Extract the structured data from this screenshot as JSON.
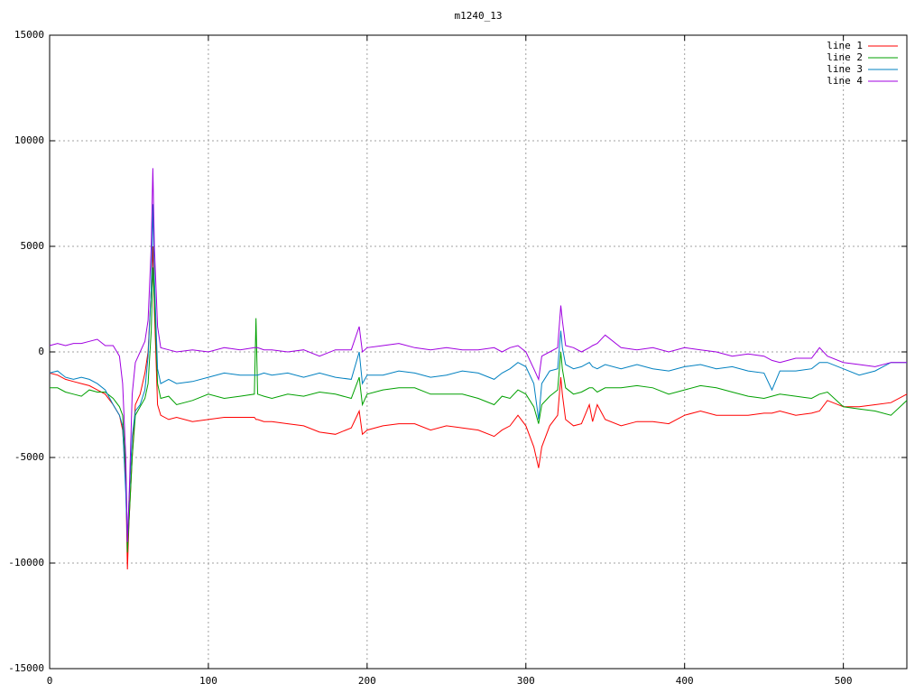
{
  "chart_data": {
    "type": "line",
    "title": "m1240_13",
    "x": [
      0,
      5,
      10,
      15,
      20,
      25,
      30,
      35,
      40,
      44,
      46,
      48,
      49,
      50,
      52,
      54,
      57,
      60,
      62,
      64,
      65,
      66,
      68,
      70,
      75,
      80,
      90,
      100,
      110,
      120,
      129,
      130,
      131,
      135,
      140,
      150,
      160,
      170,
      180,
      190,
      195,
      197,
      200,
      210,
      220,
      230,
      240,
      250,
      260,
      270,
      280,
      285,
      290,
      295,
      300,
      305,
      308,
      310,
      315,
      320,
      322,
      323,
      325,
      330,
      335,
      340,
      342,
      345,
      350,
      360,
      370,
      380,
      390,
      400,
      410,
      420,
      430,
      440,
      450,
      455,
      460,
      470,
      480,
      485,
      490,
      500,
      510,
      520,
      530,
      540
    ],
    "series": [
      {
        "name": "line 1",
        "color": "#ff0000",
        "values": [
          -1000,
          -1100,
          -1300,
          -1400,
          -1500,
          -1600,
          -1800,
          -2000,
          -2500,
          -3000,
          -3700,
          -6000,
          -10300,
          -8000,
          -5000,
          -2500,
          -2000,
          -1000,
          0,
          3000,
          5000,
          2000,
          -2500,
          -3000,
          -3200,
          -3100,
          -3300,
          -3200,
          -3100,
          -3100,
          -3100,
          -3200,
          -3200,
          -3300,
          -3300,
          -3400,
          -3500,
          -3800,
          -3900,
          -3600,
          -2800,
          -3900,
          -3700,
          -3500,
          -3400,
          -3400,
          -3700,
          -3500,
          -3600,
          -3700,
          -4000,
          -3700,
          -3500,
          -3000,
          -3500,
          -4500,
          -5500,
          -4500,
          -3500,
          -3000,
          -1200,
          -2000,
          -3200,
          -3500,
          -3400,
          -2500,
          -3300,
          -2500,
          -3200,
          -3500,
          -3300,
          -3300,
          -3400,
          -3000,
          -2800,
          -3000,
          -3000,
          -3000,
          -2900,
          -2900,
          -2800,
          -3000,
          -2900,
          -2800,
          -2300,
          -2600,
          -2600,
          -2500,
          -2400,
          -2000
        ]
      },
      {
        "name": "line 2",
        "color": "#00a000",
        "values": [
          -1700,
          -1700,
          -1900,
          -2000,
          -2100,
          -1800,
          -1900,
          -1900,
          -2200,
          -2600,
          -3000,
          -5500,
          -9500,
          -8000,
          -5000,
          -3000,
          -2600,
          -2200,
          -1500,
          1000,
          4000,
          2500,
          -1500,
          -2200,
          -2100,
          -2500,
          -2300,
          -2000,
          -2200,
          -2100,
          -2000,
          1600,
          -2000,
          -2100,
          -2200,
          -2000,
          -2100,
          -1900,
          -2000,
          -2200,
          -1200,
          -2500,
          -2000,
          -1800,
          -1700,
          -1700,
          -2000,
          -2000,
          -2000,
          -2200,
          -2500,
          -2100,
          -2200,
          -1800,
          -2000,
          -2600,
          -3400,
          -2500,
          -2100,
          -1800,
          0,
          -800,
          -1700,
          -2000,
          -1900,
          -1700,
          -1700,
          -1900,
          -1700,
          -1700,
          -1600,
          -1700,
          -2000,
          -1800,
          -1600,
          -1700,
          -1900,
          -2100,
          -2200,
          -2100,
          -2000,
          -2100,
          -2200,
          -2000,
          -1900,
          -2600,
          -2700,
          -2800,
          -3000,
          -2300
        ]
      },
      {
        "name": "line 3",
        "color": "#0080c0",
        "values": [
          -1000,
          -900,
          -1200,
          -1300,
          -1200,
          -1300,
          -1500,
          -1800,
          -2500,
          -3000,
          -3500,
          -6700,
          -9000,
          -7000,
          -4000,
          -2800,
          -2500,
          -1800,
          -200,
          3000,
          7000,
          3500,
          -800,
          -1500,
          -1300,
          -1500,
          -1400,
          -1200,
          -1000,
          -1100,
          -1100,
          -1100,
          -1100,
          -1000,
          -1100,
          -1000,
          -1200,
          -1000,
          -1200,
          -1300,
          0,
          -1500,
          -1100,
          -1100,
          -900,
          -1000,
          -1200,
          -1100,
          -900,
          -1000,
          -1300,
          -1000,
          -800,
          -500,
          -700,
          -1500,
          -3200,
          -1500,
          -900,
          -800,
          1000,
          200,
          -600,
          -800,
          -700,
          -500,
          -700,
          -800,
          -600,
          -800,
          -600,
          -800,
          -900,
          -700,
          -600,
          -800,
          -700,
          -900,
          -1000,
          -1800,
          -900,
          -900,
          -800,
          -500,
          -500,
          -800,
          -1100,
          -900,
          -500,
          -500
        ]
      },
      {
        "name": "line 4",
        "color": "#a000e0",
        "values": [
          300,
          400,
          300,
          400,
          400,
          500,
          600,
          300,
          300,
          -200,
          -1500,
          -5000,
          -9000,
          -7000,
          -2000,
          -500,
          0,
          500,
          1500,
          5000,
          8700,
          5000,
          1200,
          200,
          100,
          0,
          100,
          0,
          200,
          100,
          200,
          200,
          200,
          100,
          100,
          0,
          100,
          -200,
          100,
          100,
          1200,
          0,
          200,
          300,
          400,
          200,
          100,
          200,
          100,
          100,
          200,
          0,
          200,
          300,
          0,
          -800,
          -1300,
          -200,
          0,
          200,
          2200,
          1500,
          300,
          200,
          0,
          200,
          300,
          400,
          800,
          200,
          100,
          200,
          0,
          200,
          100,
          0,
          -200,
          -100,
          -200,
          -400,
          -500,
          -300,
          -300,
          200,
          -200,
          -500,
          -600,
          -700,
          -500,
          -500
        ]
      }
    ],
    "xlim": [
      0,
      540
    ],
    "xticks": [
      0,
      100,
      200,
      300,
      400,
      500
    ],
    "ylim": [
      -15000,
      15000
    ],
    "yticks": [
      -15000,
      -10000,
      -5000,
      0,
      5000,
      10000,
      15000
    ],
    "grid": true,
    "legend": "top-right"
  }
}
